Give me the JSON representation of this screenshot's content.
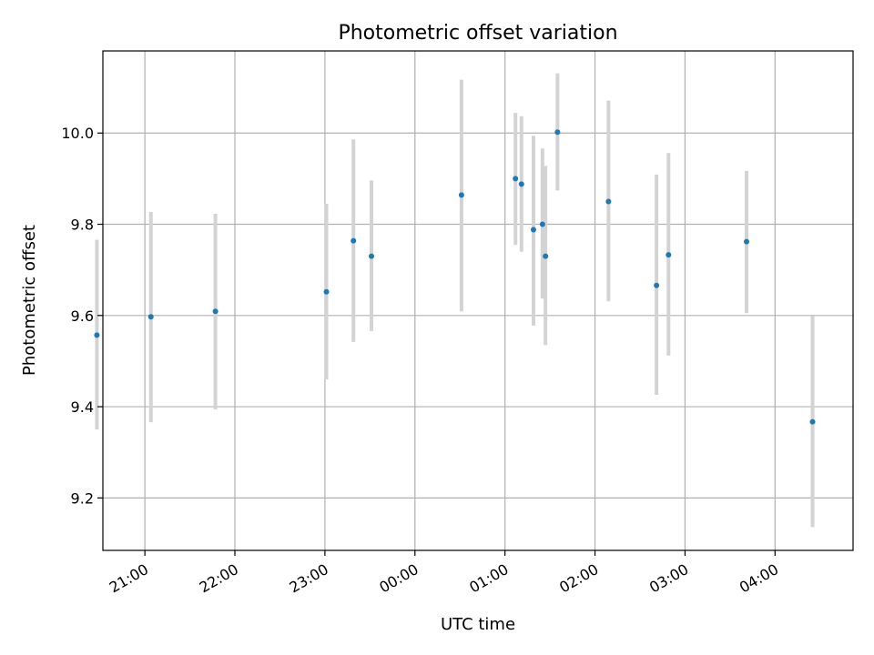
{
  "chart_data": {
    "type": "scatter",
    "title": "Photometric offset variation",
    "xlabel": "UTC time",
    "ylabel": "Photometric offset",
    "x_unit": "UTC",
    "xlim": [
      "20:32",
      "04:52"
    ],
    "ylim": [
      9.085,
      10.18
    ],
    "x_ticks": [
      "21:00",
      "22:00",
      "23:00",
      "00:00",
      "01:00",
      "02:00",
      "03:00",
      "04:00"
    ],
    "y_ticks": [
      "9.2",
      "9.4",
      "9.6",
      "9.8",
      "10.0"
    ],
    "grid": true,
    "legend": "none",
    "colors": {
      "points": "#1f77b4",
      "error_bars": "#d3d3d3",
      "grid": "#b0b0b0"
    },
    "points": [
      {
        "time": "20:28",
        "y": 9.557,
        "ylow": 9.35,
        "yhigh": 9.766
      },
      {
        "time": "21:04",
        "y": 9.597,
        "ylow": 9.366,
        "yhigh": 9.827
      },
      {
        "time": "21:47",
        "y": 9.609,
        "ylow": 9.394,
        "yhigh": 9.823
      },
      {
        "time": "23:01",
        "y": 9.652,
        "ylow": 9.46,
        "yhigh": 9.845
      },
      {
        "time": "23:19",
        "y": 9.764,
        "ylow": 9.542,
        "yhigh": 9.986
      },
      {
        "time": "23:31",
        "y": 9.73,
        "ylow": 9.566,
        "yhigh": 9.896
      },
      {
        "time": "00:31",
        "y": 9.864,
        "ylow": 9.609,
        "yhigh": 10.117
      },
      {
        "time": "01:07",
        "y": 9.9,
        "ylow": 9.755,
        "yhigh": 10.044
      },
      {
        "time": "01:11",
        "y": 9.888,
        "ylow": 9.74,
        "yhigh": 10.037
      },
      {
        "time": "01:19",
        "y": 9.788,
        "ylow": 9.578,
        "yhigh": 9.994
      },
      {
        "time": "01:25",
        "y": 9.8,
        "ylow": 9.637,
        "yhigh": 9.966
      },
      {
        "time": "01:27",
        "y": 9.73,
        "ylow": 9.535,
        "yhigh": 9.928
      },
      {
        "time": "01:35",
        "y": 10.002,
        "ylow": 9.874,
        "yhigh": 10.131
      },
      {
        "time": "02:09",
        "y": 9.85,
        "ylow": 9.631,
        "yhigh": 10.071
      },
      {
        "time": "02:41",
        "y": 9.666,
        "ylow": 9.426,
        "yhigh": 9.909
      },
      {
        "time": "02:49",
        "y": 9.733,
        "ylow": 9.512,
        "yhigh": 9.956
      },
      {
        "time": "03:41",
        "y": 9.762,
        "ylow": 9.605,
        "yhigh": 9.917
      },
      {
        "time": "04:25",
        "y": 9.367,
        "ylow": 9.136,
        "yhigh": 9.599
      }
    ]
  }
}
